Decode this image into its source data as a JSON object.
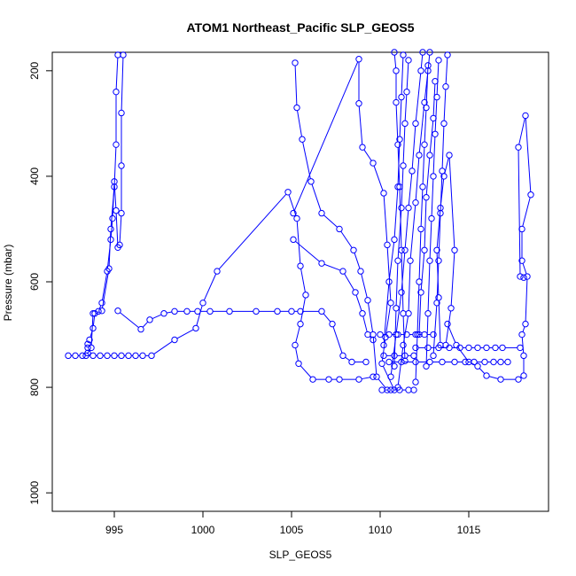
{
  "chart_data": {
    "type": "line",
    "title": "ATOM1 Northeast_Pacific SLP_GEOS5",
    "xlabel": "SLP_GEOS5",
    "ylabel": "Pressure (mbar)",
    "xlim": [
      991.5,
      1019.5
    ],
    "ylim": [
      1035,
      165
    ],
    "y_reversed": true,
    "x_ticks": [
      995,
      1000,
      1005,
      1010,
      1015
    ],
    "y_ticks": [
      200,
      400,
      600,
      800,
      1000
    ],
    "x_tick_labels": [
      "995",
      "1000",
      "1005",
      "1010",
      "1015"
    ],
    "y_tick_labels": [
      "200",
      "400",
      "600",
      "800",
      "1000"
    ],
    "grid": false,
    "marker": "open-circle",
    "series_color": "#0000ff",
    "series": [
      {
        "points": [
          [
            992.4,
            740
          ],
          [
            992.8,
            740
          ],
          [
            993.2,
            740
          ],
          [
            993.5,
            735
          ],
          [
            993.5,
            725
          ],
          [
            993.5,
            718
          ],
          [
            993.6,
            710
          ],
          [
            993.8,
            688
          ],
          [
            993.9,
            660
          ],
          [
            994.3,
            655
          ],
          [
            994.7,
            575
          ],
          [
            994.8,
            500
          ],
          [
            995.0,
            420
          ],
          [
            995.1,
            340
          ],
          [
            995.1,
            240
          ],
          [
            995.2,
            170
          ]
        ]
      },
      {
        "points": [
          [
            995.5,
            170
          ],
          [
            995.4,
            280
          ],
          [
            995.4,
            380
          ],
          [
            995.4,
            470
          ],
          [
            995.3,
            530
          ],
          [
            995.2,
            535
          ],
          [
            995.1,
            465
          ],
          [
            995.0,
            410
          ],
          [
            994.9,
            480
          ],
          [
            994.8,
            520
          ],
          [
            994.6,
            580
          ],
          [
            994.3,
            640
          ],
          [
            994.1,
            656
          ],
          [
            993.8,
            660
          ],
          [
            993.7,
            725
          ],
          [
            993.4,
            740
          ],
          [
            993.8,
            740
          ],
          [
            994.2,
            740
          ],
          [
            994.6,
            740
          ],
          [
            995.0,
            740
          ],
          [
            995.4,
            740
          ],
          [
            995.8,
            740
          ],
          [
            996.2,
            740
          ],
          [
            996.6,
            740
          ],
          [
            997.1,
            740
          ],
          [
            998.4,
            710
          ],
          [
            999.6,
            688
          ],
          [
            1000.0,
            640
          ],
          [
            1000.8,
            580
          ],
          [
            1004.8,
            430
          ],
          [
            1005.3,
            480
          ],
          [
            1005.5,
            570
          ],
          [
            1005.8,
            625
          ],
          [
            1005.5,
            680
          ],
          [
            1005.2,
            720
          ],
          [
            1005.4,
            755
          ],
          [
            1006.2,
            785
          ],
          [
            1007.1,
            785
          ],
          [
            1007.7,
            785
          ],
          [
            1008.8,
            785
          ],
          [
            1009.6,
            780
          ]
        ]
      },
      {
        "points": [
          [
            995.2,
            655
          ],
          [
            996.5,
            690
          ],
          [
            997.0,
            672
          ],
          [
            997.8,
            660
          ],
          [
            998.4,
            656
          ],
          [
            999.1,
            656
          ],
          [
            999.7,
            656
          ],
          [
            1000.4,
            656
          ],
          [
            1001.5,
            656
          ],
          [
            1003.0,
            656
          ],
          [
            1004.2,
            656
          ],
          [
            1005.0,
            656
          ],
          [
            1005.5,
            656
          ],
          [
            1006.7,
            656
          ],
          [
            1007.3,
            680
          ],
          [
            1007.9,
            740
          ],
          [
            1008.4,
            752
          ],
          [
            1009.2,
            752
          ]
        ]
      },
      {
        "points": [
          [
            1005.2,
            185
          ],
          [
            1005.3,
            270
          ],
          [
            1005.6,
            330
          ],
          [
            1006.1,
            410
          ],
          [
            1006.7,
            470
          ],
          [
            1007.7,
            500
          ],
          [
            1008.5,
            540
          ],
          [
            1008.9,
            580
          ],
          [
            1009.3,
            635
          ],
          [
            1009.6,
            700
          ],
          [
            1009.8,
            780
          ],
          [
            1010.4,
            805
          ]
        ]
      },
      {
        "points": [
          [
            1005.1,
            470
          ],
          [
            1008.8,
            178
          ],
          [
            1008.8,
            262
          ],
          [
            1009.0,
            345
          ],
          [
            1009.6,
            375
          ],
          [
            1010.2,
            432
          ],
          [
            1010.4,
            530
          ],
          [
            1010.6,
            640
          ],
          [
            1010.3,
            705
          ],
          [
            1010.1,
            755
          ],
          [
            1010.8,
            805
          ]
        ]
      },
      {
        "points": [
          [
            1005.1,
            520
          ],
          [
            1006.7,
            565
          ],
          [
            1007.9,
            580
          ],
          [
            1008.6,
            620
          ],
          [
            1009.0,
            660
          ],
          [
            1009.3,
            700
          ],
          [
            1009.6,
            710
          ]
        ]
      },
      {
        "points": [
          [
            1010.6,
            780
          ],
          [
            1010.9,
            700
          ],
          [
            1011.2,
            620
          ],
          [
            1011.4,
            540
          ],
          [
            1011.6,
            460
          ],
          [
            1011.8,
            390
          ],
          [
            1012.0,
            300
          ],
          [
            1012.3,
            200
          ],
          [
            1012.4,
            165
          ]
        ]
      },
      {
        "points": [
          [
            1011.0,
            800
          ],
          [
            1011.3,
            720
          ],
          [
            1011.6,
            660
          ],
          [
            1011.7,
            560
          ],
          [
            1012.0,
            450
          ],
          [
            1012.2,
            360
          ],
          [
            1012.5,
            260
          ],
          [
            1012.7,
            200
          ],
          [
            1012.8,
            165
          ]
        ]
      },
      {
        "points": [
          [
            1010.8,
            760
          ],
          [
            1010.9,
            650
          ],
          [
            1011.0,
            560
          ],
          [
            1011.2,
            460
          ],
          [
            1011.3,
            380
          ],
          [
            1011.4,
            300
          ],
          [
            1011.5,
            240
          ],
          [
            1011.6,
            180
          ]
        ]
      },
      {
        "points": [
          [
            1011.4,
            750
          ],
          [
            1011.3,
            660
          ],
          [
            1011.2,
            540
          ],
          [
            1011.1,
            420
          ],
          [
            1011.0,
            340
          ],
          [
            1010.9,
            260
          ],
          [
            1010.9,
            200
          ],
          [
            1010.8,
            165
          ]
        ]
      },
      {
        "points": [
          [
            1012.0,
            790
          ],
          [
            1012.1,
            700
          ],
          [
            1012.2,
            600
          ],
          [
            1012.3,
            500
          ],
          [
            1012.4,
            420
          ],
          [
            1012.5,
            340
          ],
          [
            1012.6,
            270
          ],
          [
            1012.7,
            190
          ]
        ]
      },
      {
        "points": [
          [
            1012.6,
            760
          ],
          [
            1012.7,
            660
          ],
          [
            1012.8,
            560
          ],
          [
            1012.9,
            480
          ],
          [
            1013.0,
            400
          ],
          [
            1013.1,
            320
          ],
          [
            1013.2,
            250
          ],
          [
            1013.3,
            180
          ]
        ]
      },
      {
        "points": [
          [
            1013.0,
            740
          ],
          [
            1013.2,
            640
          ],
          [
            1013.3,
            560
          ],
          [
            1013.4,
            470
          ],
          [
            1013.5,
            390
          ],
          [
            1013.6,
            300
          ],
          [
            1013.7,
            230
          ],
          [
            1013.8,
            170
          ]
        ]
      },
      {
        "points": [
          [
            1010.2,
            720
          ],
          [
            1010.5,
            600
          ],
          [
            1010.8,
            520
          ],
          [
            1011.0,
            420
          ],
          [
            1011.1,
            330
          ],
          [
            1011.2,
            250
          ],
          [
            1011.3,
            170
          ]
        ]
      },
      {
        "points": [
          [
            1012.2,
            700
          ],
          [
            1012.3,
            620
          ],
          [
            1012.5,
            540
          ],
          [
            1012.6,
            440
          ],
          [
            1012.8,
            360
          ],
          [
            1013.0,
            290
          ],
          [
            1013.1,
            220
          ]
        ]
      },
      {
        "points": [
          [
            1013.4,
            720
          ],
          [
            1013.3,
            630
          ],
          [
            1013.2,
            540
          ],
          [
            1013.4,
            460
          ],
          [
            1013.6,
            400
          ],
          [
            1013.9,
            360
          ],
          [
            1014.2,
            540
          ],
          [
            1014.0,
            650
          ],
          [
            1013.7,
            720
          ]
        ]
      },
      {
        "points": [
          [
            1010.1,
            805
          ],
          [
            1010.6,
            805
          ],
          [
            1011.1,
            805
          ],
          [
            1011.6,
            805
          ],
          [
            1011.9,
            805
          ]
        ]
      },
      {
        "points": [
          [
            1010.0,
            700
          ],
          [
            1010.5,
            700
          ],
          [
            1011.0,
            700
          ],
          [
            1011.5,
            700
          ],
          [
            1012.0,
            700
          ],
          [
            1012.5,
            700
          ],
          [
            1013.0,
            700
          ]
        ]
      },
      {
        "points": [
          [
            1010.2,
            740
          ],
          [
            1010.8,
            740
          ],
          [
            1011.4,
            740
          ],
          [
            1011.9,
            740
          ]
        ]
      },
      {
        "points": [
          [
            1012.0,
            725
          ],
          [
            1012.7,
            725
          ],
          [
            1013.3,
            725
          ],
          [
            1013.9,
            725
          ],
          [
            1014.5,
            725
          ],
          [
            1015.0,
            725
          ],
          [
            1015.5,
            725
          ],
          [
            1016.0,
            725
          ],
          [
            1016.5,
            725
          ],
          [
            1016.9,
            725
          ],
          [
            1017.9,
            725
          ]
        ]
      },
      {
        "points": [
          [
            1010.5,
            752
          ],
          [
            1011.2,
            752
          ],
          [
            1012.0,
            752
          ],
          [
            1012.8,
            752
          ],
          [
            1013.5,
            752
          ],
          [
            1014.2,
            752
          ],
          [
            1014.8,
            752
          ],
          [
            1015.3,
            752
          ],
          [
            1015.9,
            752
          ],
          [
            1016.4,
            752
          ],
          [
            1016.8,
            752
          ],
          [
            1017.2,
            752
          ]
        ]
      },
      {
        "points": [
          [
            1013.8,
            680
          ],
          [
            1014.3,
            720
          ],
          [
            1015.0,
            752
          ],
          [
            1015.5,
            760
          ],
          [
            1016.0,
            778
          ],
          [
            1016.8,
            785
          ],
          [
            1017.8,
            785
          ],
          [
            1018.1,
            778
          ],
          [
            1018.1,
            740
          ],
          [
            1018.0,
            700
          ],
          [
            1018.2,
            680
          ],
          [
            1018.3,
            590
          ],
          [
            1018.0,
            560
          ],
          [
            1018.0,
            500
          ],
          [
            1018.5,
            435
          ],
          [
            1018.2,
            285
          ],
          [
            1017.8,
            345
          ],
          [
            1017.9,
            590
          ],
          [
            1018.1,
            592
          ]
        ]
      }
    ]
  }
}
